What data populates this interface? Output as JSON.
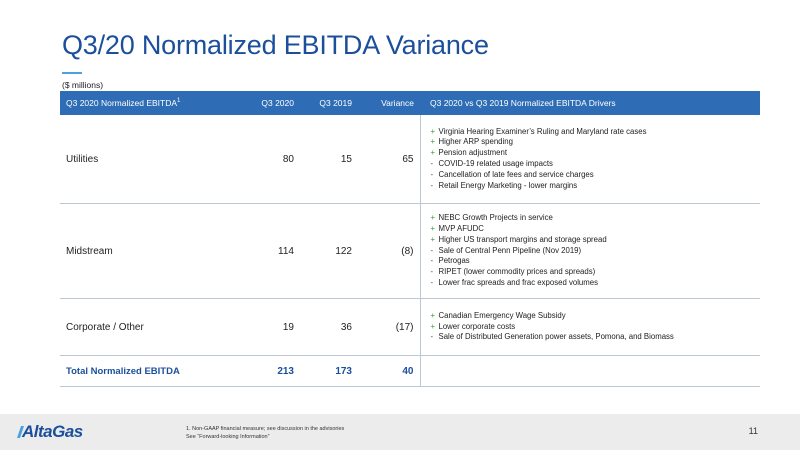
{
  "slide": {
    "title": "Q3/20 Normalized EBITDA Variance",
    "units": "($ millions)"
  },
  "table": {
    "headers": {
      "name": "Q3 2020 Normalized EBITDA",
      "name_sup": "1",
      "q3_2020": "Q3 2020",
      "q3_2019": "Q3 2019",
      "variance": "Variance",
      "drivers": "Q3 2020 vs Q3 2019 Normalized EBITDA Drivers"
    },
    "rows": [
      {
        "name": "Utilities",
        "q3_2020": "80",
        "q3_2019": "15",
        "variance": "65",
        "drivers": [
          {
            "sign": "+",
            "text": "Virginia Hearing Examiner’s Ruling and Maryland rate cases"
          },
          {
            "sign": "+",
            "text": "Higher ARP spending"
          },
          {
            "sign": "+",
            "text": "Pension adjustment"
          },
          {
            "sign": "-",
            "text": "COVID-19 related usage impacts"
          },
          {
            "sign": "-",
            "text": "Cancellation of late fees and service charges"
          },
          {
            "sign": "-",
            "text": "Retail Energy Marketing - lower margins"
          }
        ]
      },
      {
        "name": "Midstream",
        "q3_2020": "114",
        "q3_2019": "122",
        "variance": "(8)",
        "drivers": [
          {
            "sign": "+",
            "text": "NEBC Growth Projects in service"
          },
          {
            "sign": "+",
            "text": "MVP AFUDC"
          },
          {
            "sign": "+",
            "text": "Higher US transport margins and storage spread"
          },
          {
            "sign": "-",
            "text": "Sale of Central Penn Pipeline (Nov 2019)"
          },
          {
            "sign": "-",
            "text": "Petrogas"
          },
          {
            "sign": "-",
            "text": "RIPET (lower commodity prices and spreads)"
          },
          {
            "sign": "-",
            "text": "Lower frac spreads and frac exposed volumes"
          }
        ]
      },
      {
        "name": "Corporate / Other",
        "q3_2020": "19",
        "q3_2019": "36",
        "variance": "(17)",
        "drivers": [
          {
            "sign": "+",
            "text": "Canadian Emergency Wage Subsidy"
          },
          {
            "sign": "+",
            "text": "Lower corporate costs"
          },
          {
            "sign": "-",
            "text": "Sale of Distributed Generation power assets, Pomona, and Biomass"
          }
        ]
      }
    ],
    "total": {
      "name": "Total Normalized EBITDA",
      "q3_2020": "213",
      "q3_2019": "173",
      "variance": "40"
    }
  },
  "footer": {
    "logo": "AltaGas",
    "footnote_line1": "1. Non-GAAP financial measure; see discussion in the advisories",
    "footnote_line2": "See “Forward-looking Information”",
    "page_number": "11"
  },
  "colors": {
    "title": "#1b4f9c",
    "header_bg": "#2e6db5",
    "accent": "#4aa3df",
    "plus": "#3c9a3c"
  }
}
